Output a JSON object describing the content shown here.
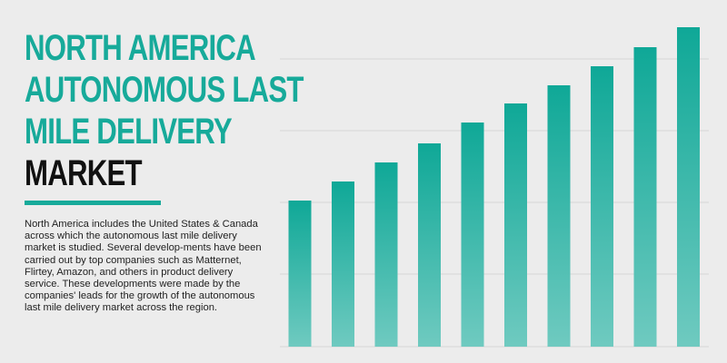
{
  "header": {
    "title_lines": [
      "NORTH AMERICA",
      "AUTONOMOUS LAST",
      "MILE DELIVERY"
    ],
    "title_dark": "MARKET"
  },
  "description": "North America includes the United States & Canada across which the autonomous last mile delivery market is studied. Several develop-ments have been carried out by top companies such as Matternet, Flirtey, Amazon, and others in product delivery service. These developments were made by the companies' leads for the growth of the autonomous last mile delivery market across the region.",
  "colors": {
    "accent": "#17aa9a",
    "bar_top": "#0fa897",
    "bar_bottom": "#6fcac0",
    "background": "#ececec",
    "grid": "#d6d6d6"
  },
  "chart_data": {
    "type": "bar",
    "categories": [
      "",
      "",
      "",
      "",
      "",
      "",
      "",
      "",
      "",
      ""
    ],
    "values": [
      161,
      182,
      203,
      224,
      247,
      268,
      288,
      309,
      330,
      352
    ],
    "title": "",
    "xlabel": "",
    "ylabel": "",
    "ylim": [
      0,
      382
    ],
    "gridlines": [
      80,
      159,
      238,
      317
    ],
    "grid": true,
    "axes_visible": false
  }
}
